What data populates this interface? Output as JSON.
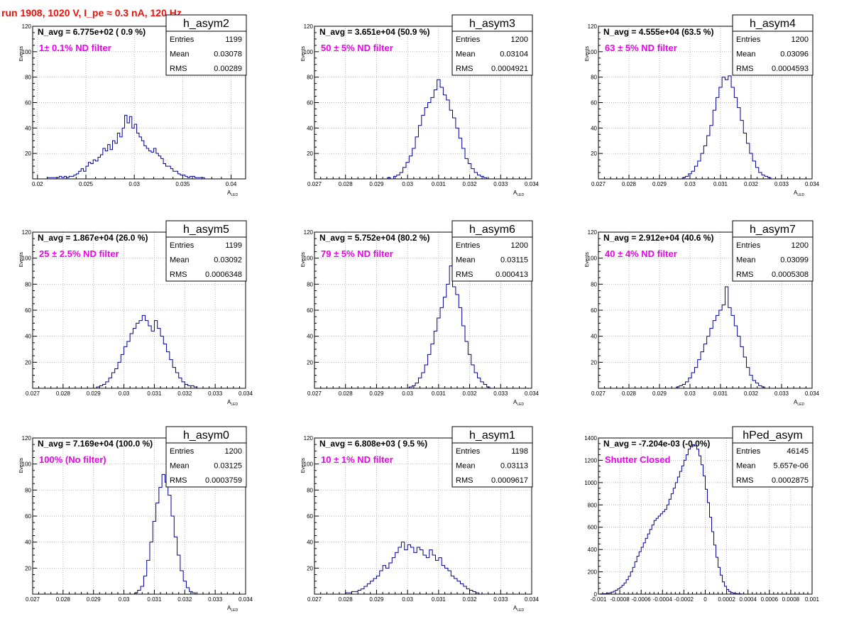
{
  "run_title": "run 1908,  1020 V, I_pe ≈ 0.3 nA, 120 Hz",
  "colors": {
    "title": "#e8140c",
    "filter_label": "#ee00ee",
    "histogram": "#000099",
    "text": "#000000"
  },
  "chart_data": [
    {
      "type": "histogram",
      "name": "h_asym2",
      "navg_text": "N_avg = 6.775e+02 ( 0.9 %)",
      "filter_label": "1± 0.1% ND filter",
      "stats": [
        [
          "Entries",
          "1199"
        ],
        [
          "Mean",
          "0.03078"
        ],
        [
          "RMS",
          "0.00289"
        ]
      ],
      "xlabel": "A",
      "xlabel_sub": "LED",
      "ylabel": "Events",
      "xlim": [
        0.0195,
        0.0415
      ],
      "ylim": [
        0,
        120
      ],
      "xticks": [
        0.02,
        0.025,
        0.03,
        0.035,
        0.04
      ],
      "xtick_labels": [
        "0.02",
        "0.025",
        "0.03",
        "0.035",
        "0.04"
      ],
      "yticks": [
        0,
        20,
        40,
        60,
        80,
        100,
        120
      ],
      "grid": true,
      "bins": {
        "start": 0.021,
        "width": 0.00025,
        "counts": [
          1,
          1,
          1,
          1,
          1,
          2,
          1,
          2,
          1,
          2,
          2,
          3,
          4,
          6,
          8,
          6,
          10,
          13,
          12,
          15,
          14,
          17,
          19,
          24,
          22,
          27,
          23,
          30,
          28,
          36,
          33,
          40,
          50,
          44,
          49,
          40,
          43,
          36,
          33,
          30,
          26,
          24,
          22,
          21,
          24,
          20,
          18,
          16,
          12,
          10,
          10,
          8,
          6,
          6,
          4,
          3,
          3,
          2,
          1,
          2,
          2,
          1,
          1,
          1,
          1
        ]
      }
    },
    {
      "type": "histogram",
      "name": "h_asym3",
      "navg_text": "N_avg = 3.651e+04 (50.9 %)",
      "filter_label": "50 ± 5% ND filter",
      "stats": [
        [
          "Entries",
          "1200"
        ],
        [
          "Mean",
          "0.03104"
        ],
        [
          "RMS",
          "0.0004921"
        ]
      ],
      "xlabel": "A",
      "xlabel_sub": "LED",
      "ylabel": "Events",
      "xlim": [
        0.027,
        0.034
      ],
      "ylim": [
        0,
        120
      ],
      "xticks": [
        0.027,
        0.028,
        0.029,
        0.03,
        0.031,
        0.032,
        0.033,
        0.034
      ],
      "xtick_labels": [
        "0.027",
        "0.028",
        "0.029",
        "0.03",
        "0.031",
        "0.032",
        "0.033",
        "0.034"
      ],
      "yticks": [
        0,
        20,
        40,
        60,
        80,
        100,
        120
      ],
      "grid": true,
      "bins": {
        "start": 0.02935,
        "width": 0.0001,
        "counts": [
          1,
          0,
          2,
          3,
          5,
          9,
          13,
          18,
          24,
          33,
          42,
          50,
          56,
          60,
          64,
          70,
          78,
          72,
          66,
          62,
          54,
          48,
          40,
          32,
          24,
          16,
          12,
          8,
          5,
          3,
          2,
          1
        ]
      }
    },
    {
      "type": "histogram",
      "name": "h_asym4",
      "navg_text": "N_avg = 4.555e+04 (63.5 %)",
      "filter_label": "63 ± 5% ND filter",
      "stats": [
        [
          "Entries",
          "1200"
        ],
        [
          "Mean",
          "0.03096"
        ],
        [
          "RMS",
          "0.0004593"
        ]
      ],
      "xlabel": "A",
      "xlabel_sub": "LED",
      "ylabel": "Events",
      "xlim": [
        0.027,
        0.034
      ],
      "ylim": [
        0,
        120
      ],
      "xticks": [
        0.027,
        0.028,
        0.029,
        0.03,
        0.031,
        0.032,
        0.033,
        0.034
      ],
      "xtick_labels": [
        "0.027",
        "0.028",
        "0.029",
        "0.03",
        "0.031",
        "0.032",
        "0.033",
        "0.034"
      ],
      "yticks": [
        0,
        20,
        40,
        60,
        80,
        100,
        120
      ],
      "grid": true,
      "bins": {
        "start": 0.02975,
        "width": 0.0001,
        "counts": [
          1,
          2,
          4,
          6,
          10,
          14,
          20,
          26,
          34,
          42,
          54,
          64,
          72,
          80,
          78,
          81,
          72,
          64,
          56,
          46,
          36,
          28,
          20,
          14,
          9,
          5,
          3,
          2,
          1
        ]
      }
    },
    {
      "type": "histogram",
      "name": "h_asym5",
      "navg_text": "N_avg = 1.867e+04 (26.0 %)",
      "filter_label": "25 ± 2.5% ND filter",
      "stats": [
        [
          "Entries",
          "1199"
        ],
        [
          "Mean",
          "0.03092"
        ],
        [
          "RMS",
          "0.0006348"
        ]
      ],
      "xlabel": "A",
      "xlabel_sub": "LED",
      "ylabel": "Events",
      "xlim": [
        0.027,
        0.034
      ],
      "ylim": [
        0,
        120
      ],
      "xticks": [
        0.027,
        0.028,
        0.029,
        0.03,
        0.031,
        0.032,
        0.033,
        0.034
      ],
      "xtick_labels": [
        "0.027",
        "0.028",
        "0.029",
        "0.03",
        "0.031",
        "0.032",
        "0.033",
        "0.034"
      ],
      "yticks": [
        0,
        20,
        40,
        60,
        80,
        100,
        120
      ],
      "grid": true,
      "bins": {
        "start": 0.0291,
        "width": 0.0001,
        "counts": [
          1,
          2,
          3,
          5,
          8,
          12,
          15,
          20,
          26,
          32,
          36,
          42,
          46,
          50,
          52,
          56,
          52,
          48,
          44,
          52,
          46,
          40,
          34,
          28,
          22,
          16,
          12,
          8,
          5,
          3,
          2,
          2,
          1
        ]
      }
    },
    {
      "type": "histogram",
      "name": "h_asym6",
      "navg_text": "N_avg = 5.752e+04 (80.2 %)",
      "filter_label": "79 ± 5% ND filter",
      "stats": [
        [
          "Entries",
          "1200"
        ],
        [
          "Mean",
          "0.03115"
        ],
        [
          "RMS",
          "0.000413"
        ]
      ],
      "xlabel": "A",
      "xlabel_sub": "LED",
      "ylabel": "Events",
      "xlim": [
        0.027,
        0.034
      ],
      "ylim": [
        0,
        120
      ],
      "xticks": [
        0.027,
        0.028,
        0.029,
        0.03,
        0.031,
        0.032,
        0.033,
        0.034
      ],
      "xtick_labels": [
        "0.027",
        "0.028",
        "0.029",
        "0.03",
        "0.031",
        "0.032",
        "0.033",
        "0.034"
      ],
      "yticks": [
        0,
        20,
        40,
        60,
        80,
        100,
        120
      ],
      "grid": true,
      "bins": {
        "start": 0.03005,
        "width": 0.0001,
        "counts": [
          1,
          2,
          4,
          8,
          12,
          18,
          26,
          34,
          44,
          54,
          62,
          70,
          80,
          94,
          78,
          72,
          62,
          48,
          36,
          26,
          18,
          12,
          8,
          5,
          3,
          1
        ]
      }
    },
    {
      "type": "histogram",
      "name": "h_asym7",
      "navg_text": "N_avg = 2.912e+04 (40.6 %)",
      "filter_label": "40 ± 4% ND filter",
      "stats": [
        [
          "Entries",
          "1200"
        ],
        [
          "Mean",
          "0.03099"
        ],
        [
          "RMS",
          "0.0005308"
        ]
      ],
      "xlabel": "A",
      "xlabel_sub": "LED",
      "ylabel": "Events",
      "xlim": [
        0.027,
        0.034
      ],
      "ylim": [
        0,
        120
      ],
      "xticks": [
        0.027,
        0.028,
        0.029,
        0.03,
        0.031,
        0.032,
        0.033,
        0.034
      ],
      "xtick_labels": [
        "0.027",
        "0.028",
        "0.029",
        "0.03",
        "0.031",
        "0.032",
        "0.033",
        "0.034"
      ],
      "yticks": [
        0,
        20,
        40,
        60,
        80,
        100,
        120
      ],
      "grid": true,
      "bins": {
        "start": 0.02955,
        "width": 0.0001,
        "counts": [
          1,
          2,
          3,
          5,
          8,
          12,
          16,
          22,
          28,
          34,
          40,
          46,
          52,
          56,
          60,
          64,
          78,
          62,
          56,
          48,
          40,
          32,
          24,
          16,
          10,
          6,
          4,
          2,
          1
        ]
      }
    },
    {
      "type": "histogram",
      "name": "h_asym0",
      "navg_text": "N_avg = 7.169e+04 (100.0 %)",
      "filter_label": "100% (No filter)",
      "stats": [
        [
          "Entries",
          "1200"
        ],
        [
          "Mean",
          "0.03125"
        ],
        [
          "RMS",
          "0.0003759"
        ]
      ],
      "xlabel": "A",
      "xlabel_sub": "LED",
      "ylabel": "Events",
      "xlim": [
        0.027,
        0.034
      ],
      "ylim": [
        0,
        120
      ],
      "xticks": [
        0.027,
        0.028,
        0.029,
        0.03,
        0.031,
        0.032,
        0.033,
        0.034
      ],
      "xtick_labels": [
        "0.027",
        "0.028",
        "0.029",
        "0.03",
        "0.031",
        "0.032",
        "0.033",
        "0.034"
      ],
      "yticks": [
        0,
        20,
        40,
        60,
        80,
        100,
        120
      ],
      "grid": true,
      "bins": {
        "start": 0.03035,
        "width": 0.0001,
        "counts": [
          1,
          3,
          6,
          14,
          26,
          40,
          56,
          70,
          82,
          92,
          86,
          76,
          60,
          44,
          30,
          18,
          10,
          5,
          2,
          1
        ]
      }
    },
    {
      "type": "histogram",
      "name": "h_asym1",
      "navg_text": "N_avg = 6.808e+03 ( 9.5 %)",
      "filter_label": "10 ± 1% ND filter",
      "stats": [
        [
          "Entries",
          "1198"
        ],
        [
          "Mean",
          "0.03113"
        ],
        [
          "RMS",
          "0.0009617"
        ]
      ],
      "xlabel": "A",
      "xlabel_sub": "LED",
      "ylabel": "Events",
      "xlim": [
        0.027,
        0.034
      ],
      "ylim": [
        0,
        120
      ],
      "xticks": [
        0.027,
        0.028,
        0.029,
        0.03,
        0.031,
        0.032,
        0.033,
        0.034
      ],
      "xtick_labels": [
        "0.027",
        "0.028",
        "0.029",
        "0.03",
        "0.031",
        "0.032",
        "0.033",
        "0.034"
      ],
      "yticks": [
        0,
        20,
        40,
        60,
        80,
        100,
        120
      ],
      "grid": true,
      "bins": {
        "start": 0.028,
        "width": 0.0001,
        "counts": [
          1,
          1,
          2,
          2,
          3,
          4,
          6,
          8,
          10,
          12,
          14,
          18,
          22,
          20,
          24,
          28,
          32,
          36,
          40,
          34,
          38,
          36,
          32,
          36,
          34,
          30,
          28,
          34,
          30,
          26,
          28,
          22,
          20,
          18,
          14,
          12,
          10,
          8,
          6,
          4,
          3,
          2,
          1
        ]
      }
    },
    {
      "type": "histogram",
      "name": "hPed_asym",
      "navg_text": "N_avg = -7.204e-03 (-0.0%)",
      "filter_label": "Shutter Closed",
      "stats": [
        [
          "Entries",
          "46145"
        ],
        [
          "Mean",
          "5.657e-06"
        ],
        [
          "RMS",
          "0.0002875"
        ]
      ],
      "xlabel": "",
      "xlabel_sub": "",
      "ylabel": "",
      "xlim": [
        -0.001,
        0.001
      ],
      "ylim": [
        0,
        1400
      ],
      "xticks": [
        -0.001,
        -0.0008,
        -0.0006,
        -0.0004,
        -0.0002,
        0,
        0.0002,
        0.0004,
        0.0006,
        0.0008,
        0.001
      ],
      "xtick_labels": [
        "-0.001",
        "-0.0008",
        "-0.0006",
        "-0.0004",
        "-0.0002",
        "0",
        "0.0002",
        "0.0004",
        "0.0006",
        "0.0008",
        "0.001"
      ],
      "yticks": [
        0,
        200,
        400,
        600,
        800,
        1000,
        1200,
        1400
      ],
      "grid": true,
      "bins": {
        "start": -0.00098,
        "width": 2e-05,
        "counts": [
          2,
          3,
          5,
          8,
          12,
          18,
          26,
          36,
          48,
          62,
          80,
          100,
          130,
          160,
          200,
          240,
          290,
          340,
          380,
          420,
          460,
          500,
          540,
          580,
          620,
          660,
          680,
          700,
          720,
          740,
          760,
          800,
          850,
          900,
          950,
          1000,
          1050,
          1100,
          1150,
          1200,
          1250,
          1300,
          1320,
          1340,
          1330,
          1300,
          1240,
          1160,
          1060,
          940,
          820,
          690,
          560,
          440,
          330,
          240,
          170,
          110,
          70,
          42,
          24,
          14,
          8,
          5,
          3,
          2
        ]
      }
    }
  ]
}
